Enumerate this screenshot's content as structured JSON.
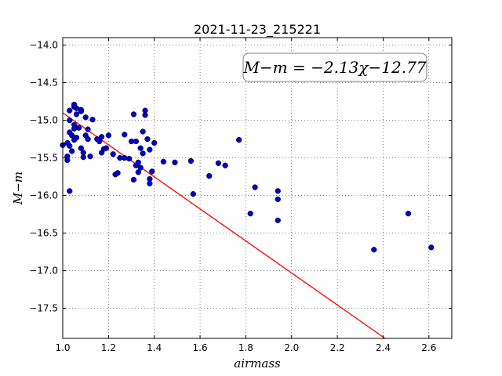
{
  "chart_data": {
    "type": "scatter",
    "title": "2021-11-23_215221",
    "xlabel": "airmass",
    "ylabel": "M−m",
    "xlim": [
      1.0,
      2.7
    ],
    "ylim": [
      -17.9,
      -13.9
    ],
    "y_inverted": true,
    "grid": true,
    "x_ticks": [
      1.0,
      1.2,
      1.4,
      1.6,
      1.8,
      2.0,
      2.2,
      2.4,
      2.6
    ],
    "x_tick_labels": [
      "1.0",
      "1.2",
      "1.4",
      "1.6",
      "1.8",
      "2.0",
      "2.2",
      "2.4",
      "2.6"
    ],
    "y_ticks": [
      -14.0,
      -14.5,
      -15.0,
      -15.5,
      -16.0,
      -16.5,
      -17.0,
      -17.5
    ],
    "y_tick_labels": [
      "−14.0",
      "−14.5",
      "−15.0",
      "−15.5",
      "−16.0",
      "−16.5",
      "−17.0",
      "−17.5"
    ],
    "annotation": "M−m = −2.13χ−12.77",
    "annotation_position": "top-right",
    "marker_color": "#0000cc",
    "fit_color": "#ff0000",
    "fit_line": {
      "slope": -2.13,
      "intercept": -12.77
    },
    "series": [
      {
        "points": [
          [
            1.0,
            -15.33
          ],
          [
            1.02,
            -15.3
          ],
          [
            1.02,
            -15.48
          ],
          [
            1.02,
            -15.53
          ],
          [
            1.03,
            -14.87
          ],
          [
            1.03,
            -15.0
          ],
          [
            1.03,
            -15.16
          ],
          [
            1.03,
            -15.34
          ],
          [
            1.03,
            -15.94
          ],
          [
            1.04,
            -15.2
          ],
          [
            1.04,
            -15.41
          ],
          [
            1.05,
            -14.82
          ],
          [
            1.05,
            -14.79
          ],
          [
            1.05,
            -15.06
          ],
          [
            1.05,
            -15.11
          ],
          [
            1.05,
            -15.26
          ],
          [
            1.06,
            -14.84
          ],
          [
            1.06,
            -14.92
          ],
          [
            1.06,
            -15.23
          ],
          [
            1.07,
            -15.1
          ],
          [
            1.08,
            -14.88
          ],
          [
            1.08,
            -14.86
          ],
          [
            1.08,
            -15.37
          ],
          [
            1.09,
            -15.43
          ],
          [
            1.09,
            -15.49
          ],
          [
            1.1,
            -14.96
          ],
          [
            1.1,
            -15.2
          ],
          [
            1.11,
            -15.12
          ],
          [
            1.11,
            -15.25
          ],
          [
            1.12,
            -15.48
          ],
          [
            1.13,
            -14.99
          ],
          [
            1.15,
            -15.25
          ],
          [
            1.16,
            -15.28
          ],
          [
            1.17,
            -15.43
          ],
          [
            1.17,
            -15.22
          ],
          [
            1.18,
            -15.38
          ],
          [
            1.19,
            -15.37
          ],
          [
            1.2,
            -15.2
          ],
          [
            1.22,
            -15.45
          ],
          [
            1.23,
            -15.72
          ],
          [
            1.24,
            -15.7
          ],
          [
            1.25,
            -15.5
          ],
          [
            1.27,
            -15.5
          ],
          [
            1.27,
            -15.19
          ],
          [
            1.29,
            -15.51
          ],
          [
            1.3,
            -15.28
          ],
          [
            1.31,
            -15.79
          ],
          [
            1.31,
            -14.92
          ],
          [
            1.32,
            -15.6
          ],
          [
            1.32,
            -15.28
          ],
          [
            1.33,
            -15.56
          ],
          [
            1.33,
            -15.69
          ],
          [
            1.34,
            -15.37
          ],
          [
            1.34,
            -15.63
          ],
          [
            1.35,
            -15.15
          ],
          [
            1.35,
            -15.44
          ],
          [
            1.36,
            -14.87
          ],
          [
            1.36,
            -14.93
          ],
          [
            1.37,
            -15.25
          ],
          [
            1.38,
            -15.39
          ],
          [
            1.38,
            -15.84
          ],
          [
            1.38,
            -15.78
          ],
          [
            1.39,
            -15.68
          ],
          [
            1.4,
            -15.3
          ],
          [
            1.44,
            -15.55
          ],
          [
            1.49,
            -15.56
          ],
          [
            1.56,
            -15.54
          ],
          [
            1.57,
            -15.98
          ],
          [
            1.64,
            -15.74
          ],
          [
            1.68,
            -15.57
          ],
          [
            1.71,
            -15.6
          ],
          [
            1.77,
            -15.26
          ],
          [
            1.82,
            -16.24
          ],
          [
            1.84,
            -15.89
          ],
          [
            1.94,
            -15.94
          ],
          [
            1.94,
            -16.05
          ],
          [
            1.94,
            -16.33
          ],
          [
            2.36,
            -16.72
          ],
          [
            2.51,
            -16.24
          ],
          [
            2.61,
            -16.69
          ]
        ]
      }
    ]
  }
}
